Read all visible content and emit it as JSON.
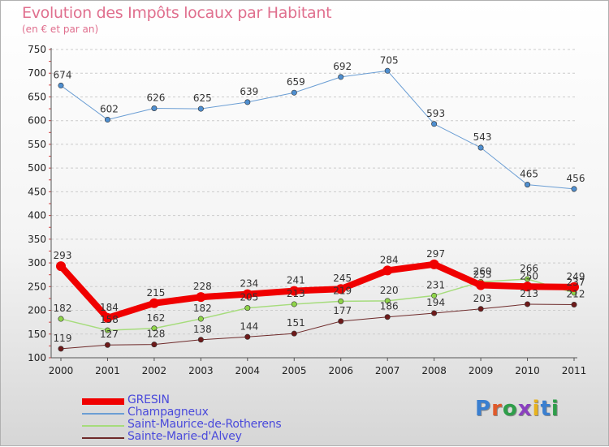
{
  "header": {
    "title": "Evolution des Impôts locaux par Habitant",
    "subtitle": "(en € et par an)"
  },
  "logo": {
    "text": "Proxiti",
    "letter_colors": [
      "#3a7fd0",
      "#e05a2a",
      "#2e9e4a",
      "#8a3fbf",
      "#e7b21e",
      "#3a7fd0",
      "#2e9e4a"
    ]
  },
  "chart_data": {
    "type": "line",
    "x": [
      "2000",
      "2001",
      "2002",
      "2003",
      "2004",
      "2005",
      "2006",
      "2007",
      "2008",
      "2009",
      "2010",
      "2011"
    ],
    "ylim": [
      100,
      750
    ],
    "yticks": [
      100,
      150,
      200,
      250,
      300,
      350,
      400,
      450,
      500,
      550,
      600,
      650,
      700,
      750
    ],
    "grid": "horizontal dashed",
    "legend_position": "bottom-left",
    "series": [
      {
        "name": "GRESIN",
        "color": "#f00000",
        "line_width": 8,
        "values": [
          293,
          184,
          215,
          228,
          234,
          241,
          245,
          284,
          297,
          253,
          250,
          249
        ]
      },
      {
        "name": "Champagneux",
        "color": "#6b9ed4",
        "line_width": 1,
        "values": [
          674,
          602,
          626,
          625,
          639,
          659,
          692,
          705,
          593,
          543,
          465,
          456
        ]
      },
      {
        "name": "Saint-Maurice-de-Rotherens",
        "color": "#a6dc7c",
        "line_width": 1.5,
        "values": [
          182,
          158,
          162,
          182,
          205,
          213,
          219,
          220,
          231,
          260,
          266,
          237
        ]
      },
      {
        "name": "Sainte-Marie-d'Alvey",
        "color": "#6e2a2a",
        "line_width": 1,
        "values": [
          119,
          127,
          128,
          138,
          144,
          151,
          177,
          186,
          194,
          203,
          213,
          212
        ]
      }
    ]
  }
}
